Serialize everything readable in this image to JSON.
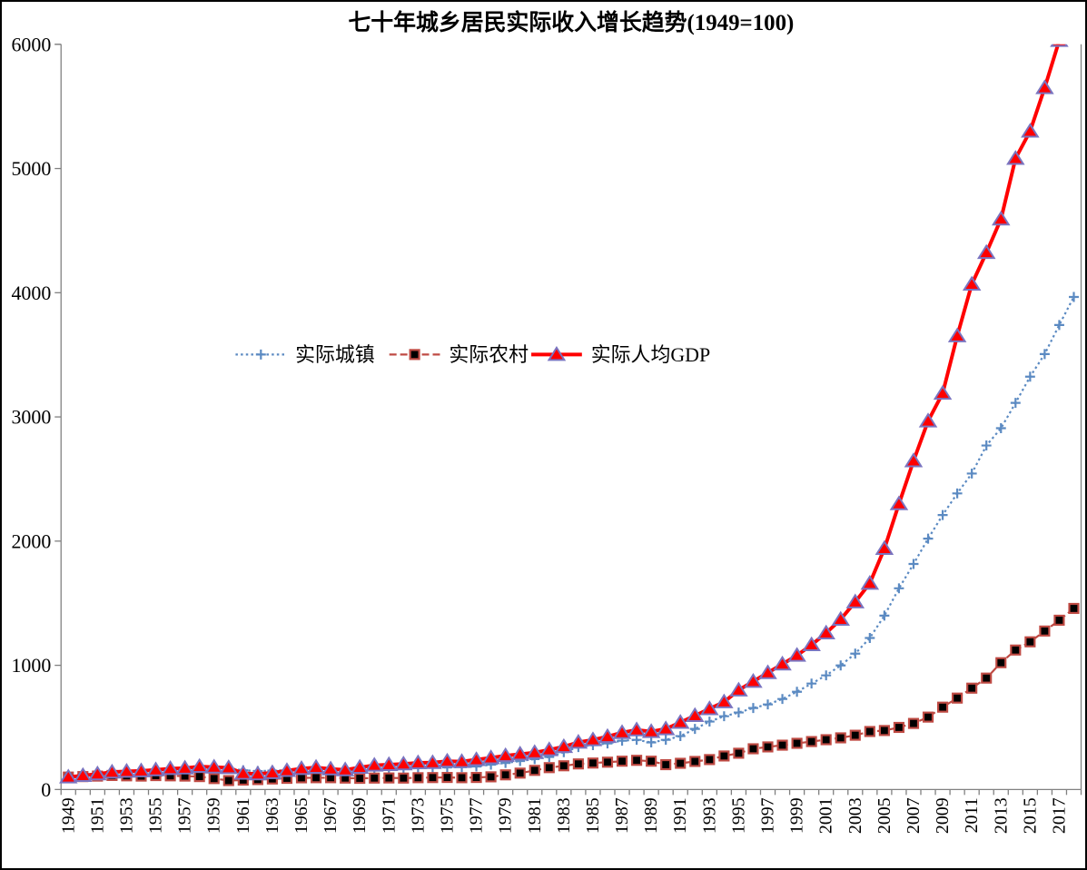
{
  "chart_data": {
    "type": "line",
    "title": "七十年城乡居民实际收入增长趋势(1949=100)",
    "xlabel": "",
    "ylabel": "",
    "ylim": [
      0,
      6000
    ],
    "yticks": [
      0,
      1000,
      2000,
      3000,
      4000,
      5000,
      6000
    ],
    "grid": false,
    "legend_position": "inside-upper-left-of-center",
    "x_label_every": 2,
    "x": [
      1949,
      1950,
      1951,
      1952,
      1953,
      1954,
      1955,
      1956,
      1957,
      1958,
      1959,
      1960,
      1961,
      1962,
      1963,
      1964,
      1965,
      1966,
      1967,
      1968,
      1969,
      1970,
      1971,
      1972,
      1973,
      1974,
      1975,
      1976,
      1977,
      1978,
      1979,
      1980,
      1981,
      1982,
      1983,
      1984,
      1985,
      1986,
      1987,
      1988,
      1989,
      1990,
      1991,
      1992,
      1993,
      1994,
      1995,
      1996,
      1997,
      1998,
      1999,
      2000,
      2001,
      2002,
      2003,
      2004,
      2005,
      2006,
      2007,
      2008,
      2009,
      2010,
      2011,
      2012,
      2013,
      2014,
      2015,
      2016,
      2017,
      2018
    ],
    "series": [
      {
        "key": "urban",
        "name": "实际城镇",
        "line_style": "dotted",
        "marker": "plus",
        "color": "#5b8ac2",
        "values": [
          100,
          115,
          125,
          135,
          145,
          148,
          152,
          160,
          163,
          168,
          170,
          172,
          155,
          148,
          152,
          155,
          160,
          162,
          158,
          155,
          158,
          160,
          162,
          168,
          172,
          175,
          178,
          180,
          185,
          200,
          214,
          229,
          245,
          262,
          300,
          342,
          357,
          371,
          393,
          400,
          379,
          400,
          430,
          488,
          547,
          590,
          620,
          656,
          685,
          729,
          787,
          853,
          919,
          999,
          1094,
          1220,
          1400,
          1620,
          1816,
          2020,
          2210,
          2384,
          2544,
          2770,
          2909,
          3113,
          3324,
          3506,
          3740,
          3966
        ]
      },
      {
        "key": "rural",
        "name": "实际农村",
        "line_style": "dashed",
        "marker": "square",
        "color": "#bf4a43",
        "marker_fill": "#000000",
        "values": [
          100,
          104,
          108,
          113,
          110,
          108,
          112,
          110,
          108,
          104,
          88,
          72,
          76,
          80,
          85,
          90,
          94,
          95,
          95,
          92,
          90,
          92,
          93,
          92,
          95,
          96,
          97,
          95,
          97,
          102,
          118,
          132,
          154,
          176,
          191,
          206,
          213,
          220,
          228,
          235,
          228,
          200,
          211,
          226,
          241,
          270,
          292,
          328,
          343,
          357,
          372,
          386,
          401,
          416,
          437,
          467,
          475,
          500,
          532,
          583,
          663,
          736,
          816,
          897,
          1021,
          1123,
          1189,
          1276,
          1363,
          1458
        ]
      },
      {
        "key": "gdp",
        "name": "实际人均GDP",
        "line_style": "solid",
        "marker": "triangle",
        "color": "#ff0000",
        "marker_fill": "#ff0000",
        "marker_stroke": "#7a74c0",
        "values": [
          100,
          112,
          125,
          140,
          146,
          150,
          158,
          168,
          172,
          185,
          180,
          175,
          130,
          125,
          135,
          152,
          168,
          178,
          165,
          158,
          178,
          195,
          200,
          205,
          215,
          216,
          228,
          225,
          240,
          255,
          272,
          285,
          297,
          320,
          345,
          380,
          400,
          426,
          458,
          480,
          466,
          488,
          540,
          595,
          650,
          705,
          800,
          870,
          940,
          1010,
          1080,
          1165,
          1260,
          1370,
          1510,
          1660,
          1940,
          2300,
          2646,
          2967,
          3190,
          3652,
          4068,
          4323,
          4593,
          5081,
          5300,
          5650,
          6030,
          6440
        ]
      }
    ]
  },
  "style_colors": {
    "axis": "#808080",
    "text": "#000000",
    "background": "#ffffff",
    "frame_border": "#000000"
  }
}
